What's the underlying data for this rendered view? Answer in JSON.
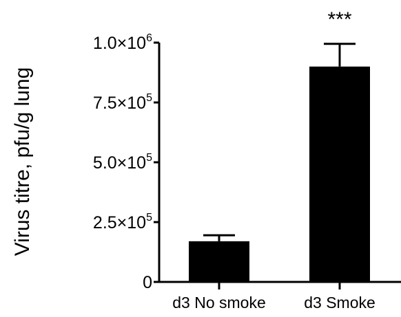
{
  "chart_data": {
    "type": "bar",
    "title": "",
    "xlabel": "",
    "ylabel": "Virus titre, pfu/g lung",
    "categories": [
      "d3 No smoke",
      "d3 Smoke"
    ],
    "values": [
      170000,
      900000
    ],
    "error_upper": [
      195000,
      995000
    ],
    "ylim": [
      0,
      1000000
    ],
    "yticks": [
      {
        "value": 0,
        "mantissa": "0",
        "exponent": ""
      },
      {
        "value": 250000,
        "mantissa": "2.5×10",
        "exponent": "5"
      },
      {
        "value": 500000,
        "mantissa": "5.0×10",
        "exponent": "5"
      },
      {
        "value": 750000,
        "mantissa": "7.5×10",
        "exponent": "5"
      },
      {
        "value": 1000000,
        "mantissa": "1.0×10",
        "exponent": "6"
      }
    ],
    "annotations": [
      {
        "category_index": 1,
        "text": "***"
      }
    ],
    "bar_color": "#000000",
    "grid": false,
    "legend": "none"
  }
}
